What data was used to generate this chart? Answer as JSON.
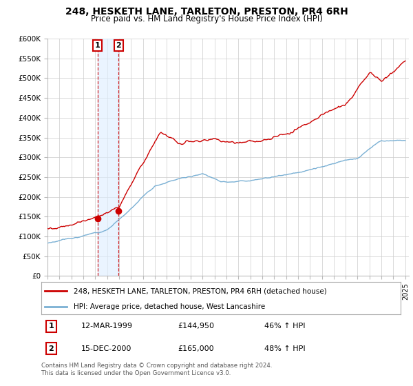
{
  "title": "248, HESKETH LANE, TARLETON, PRESTON, PR4 6RH",
  "subtitle": "Price paid vs. HM Land Registry's House Price Index (HPI)",
  "ylim": [
    0,
    600000
  ],
  "yticks": [
    0,
    50000,
    100000,
    150000,
    200000,
    250000,
    300000,
    350000,
    400000,
    450000,
    500000,
    550000,
    600000
  ],
  "red_line_color": "#cc0000",
  "blue_line_color": "#7ab0d4",
  "legend_red_label": "248, HESKETH LANE, TARLETON, PRESTON, PR4 6RH (detached house)",
  "legend_blue_label": "HPI: Average price, detached house, West Lancashire",
  "transaction1_date": "12-MAR-1999",
  "transaction1_price": "£144,950",
  "transaction1_hpi": "46% ↑ HPI",
  "transaction1_year": 1999.2,
  "transaction1_value": 144950,
  "transaction2_date": "15-DEC-2000",
  "transaction2_price": "£165,000",
  "transaction2_hpi": "48% ↑ HPI",
  "transaction2_year": 2000.96,
  "transaction2_value": 165000,
  "footer_text": "Contains HM Land Registry data © Crown copyright and database right 2024.\nThis data is licensed under the Open Government Licence v3.0.",
  "background_color": "#ffffff",
  "grid_color": "#cccccc",
  "shading_color": "#ddeeff"
}
